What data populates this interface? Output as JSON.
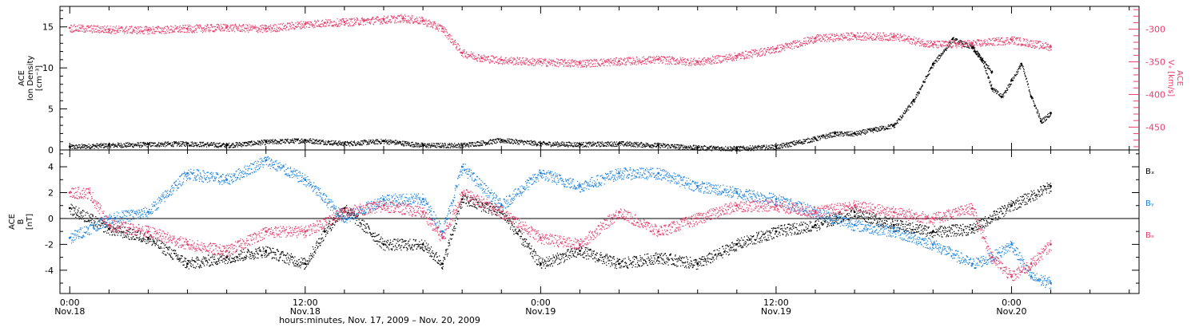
{
  "chart_data": [
    {
      "type": "scatter",
      "panel": "top",
      "ylabel_lines": [
        "ACE",
        "Ion Density",
        "[cm⁻³]"
      ],
      "ylim": [
        0,
        17.5
      ],
      "yticks": [
        0,
        5,
        10,
        15
      ],
      "right_ylabel_lines": [
        "ACE",
        "Vₓ [km/s]"
      ],
      "right_ylim": [
        -485,
        -265
      ],
      "right_yticks": [
        -300,
        -350,
        -400,
        -450
      ],
      "right_color": "#e83e6c",
      "series": [
        {
          "axis": "left",
          "color": "#000000",
          "x": [
            0,
            2,
            4,
            6,
            8,
            10,
            12,
            14,
            16,
            18,
            20,
            22,
            24,
            26,
            28,
            30,
            32,
            34,
            36,
            38,
            39,
            40,
            41,
            42,
            43,
            44,
            45,
            46,
            47
          ],
          "y": [
            0.4,
            0.6,
            0.7,
            0.8,
            0.6,
            1.0,
            1.2,
            0.8,
            1.1,
            0.6,
            0.6,
            1.2,
            0.8,
            0.7,
            0.8,
            0.6,
            0.3,
            0.2,
            0.4,
            1.4,
            2.0,
            2.0,
            2.5,
            3.0,
            6.0,
            10.5,
            13.5,
            12.5,
            9.5
          ]
        },
        {
          "axis": "left",
          "color": "#000000",
          "x": [
            46.0,
            46.5,
            47.0,
            47.5,
            48.0,
            48.5,
            49.0,
            49.5,
            50.0
          ],
          "y": [
            12.5,
            11.0,
            7.5,
            6.5,
            8.5,
            10.5,
            6.5,
            3.5,
            4.5
          ]
        },
        {
          "axis": "right",
          "color": "#e83e6c",
          "x": [
            0,
            2,
            4,
            6,
            8,
            10,
            12,
            13,
            14,
            15,
            16,
            17,
            18,
            19,
            20,
            21,
            22,
            24,
            26,
            28,
            30,
            32,
            34,
            36,
            38,
            40,
            42,
            44,
            46,
            48,
            50
          ],
          "y": [
            -298,
            -300,
            -301,
            -299,
            -297,
            -299,
            -292,
            -290,
            -289,
            -287,
            -285,
            -283,
            -287,
            -299,
            -336,
            -344,
            -347,
            -350,
            -352,
            -349,
            -346,
            -350,
            -341,
            -330,
            -314,
            -310,
            -311,
            -323,
            -322,
            -316,
            -327
          ]
        }
      ]
    },
    {
      "type": "scatter",
      "panel": "bottom",
      "ylabel_lines": [
        "ACE",
        "B",
        "[nT]"
      ],
      "ylim": [
        -5.8,
        5.3
      ],
      "yticks": [
        4,
        2,
        0,
        -2,
        -4
      ],
      "zero_line": true,
      "legend": [
        {
          "name": "Bₓ",
          "color": "#000000"
        },
        {
          "name": "Bᵧ",
          "color": "#1b82e0"
        },
        {
          "name": "Bₔ",
          "color": "#e83e6c"
        }
      ],
      "series": [
        {
          "name": "Bₓ",
          "color": "#000000",
          "x": [
            0,
            2,
            4,
            6,
            8,
            10,
            12,
            13,
            14,
            16,
            18,
            19,
            20,
            22,
            24,
            26,
            28,
            30,
            32,
            34,
            36,
            38,
            40,
            42,
            44,
            46,
            48,
            50
          ],
          "y": [
            0.8,
            -0.8,
            -1.5,
            -3.5,
            -3.0,
            -2.5,
            -3.5,
            -1.0,
            0.8,
            -2.0,
            -2.0,
            -3.5,
            1.5,
            0.5,
            -3.5,
            -2.5,
            -3.5,
            -3.0,
            -3.5,
            -2.0,
            -1.0,
            -0.5,
            0.5,
            -0.5,
            -1.0,
            -0.8,
            1.0,
            2.5
          ]
        },
        {
          "name": "Bᵧ",
          "color": "#1b82e0",
          "x": [
            0,
            2,
            4,
            6,
            8,
            10,
            12,
            14,
            16,
            18,
            19,
            20,
            22,
            24,
            26,
            28,
            30,
            32,
            34,
            36,
            38,
            40,
            42,
            44,
            46,
            47,
            48,
            49,
            50
          ],
          "y": [
            -1.5,
            0.0,
            0.5,
            3.5,
            3.0,
            4.5,
            3.0,
            0.0,
            1.5,
            1.5,
            -1.0,
            4.0,
            1.0,
            3.5,
            2.5,
            3.5,
            3.5,
            2.5,
            2.0,
            1.5,
            0.5,
            -0.5,
            -1.0,
            -2.0,
            -3.5,
            -3.0,
            -2.0,
            -4.5,
            -5.0
          ]
        },
        {
          "name": "Bₔ",
          "color": "#e83e6c",
          "x": [
            0,
            1,
            2,
            4,
            6,
            8,
            10,
            12,
            14,
            16,
            18,
            19,
            20,
            22,
            24,
            26,
            28,
            30,
            32,
            34,
            36,
            38,
            40,
            42,
            44,
            46,
            47,
            48,
            49,
            50
          ],
          "y": [
            2.0,
            2.0,
            -0.5,
            -1.0,
            -2.0,
            -2.5,
            -1.0,
            -1.0,
            0.5,
            1.0,
            0.5,
            -1.5,
            2.0,
            0.5,
            -1.5,
            -2.0,
            0.5,
            -1.0,
            0.0,
            1.0,
            1.0,
            0.5,
            1.0,
            0.5,
            0.0,
            0.8,
            -3.0,
            -4.5,
            -3.5,
            -2.0
          ]
        }
      ]
    }
  ],
  "x_axis": {
    "xlim": [
      -0.5,
      54.5
    ],
    "ticks": [
      {
        "x": 0,
        "time": "0:00",
        "date": "Nov.18"
      },
      {
        "x": 12,
        "time": "12:00",
        "date": "Nov.18"
      },
      {
        "x": 24,
        "time": "0:00",
        "date": "Nov.19"
      },
      {
        "x": 36,
        "time": "12:00",
        "date": "Nov.19"
      },
      {
        "x": 48,
        "time": "0:00",
        "date": "Nov.20"
      }
    ],
    "minor_step": 2,
    "label": "hours:minutes, Nov. 17, 2009 – Nov. 20, 2009"
  }
}
